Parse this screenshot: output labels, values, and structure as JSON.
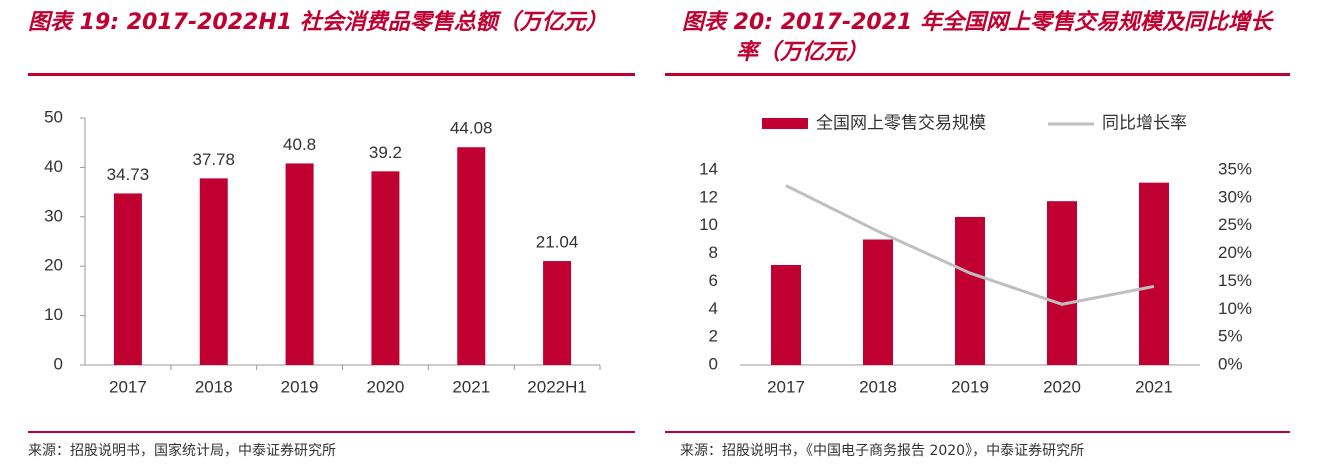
{
  "chart_data": [
    {
      "type": "bar",
      "title": "图表 19: 2017-2022H1 社会消费品零售总额（万亿元）",
      "categories": [
        "2017",
        "2018",
        "2019",
        "2020",
        "2021",
        "2022H1"
      ],
      "values": [
        34.73,
        37.78,
        40.8,
        39.2,
        44.08,
        21.04
      ],
      "color": "#c00030",
      "data_labels": true,
      "ylim": [
        0,
        50
      ],
      "yticks": [
        0,
        10,
        20,
        30,
        40,
        50
      ],
      "source": "来源：招股说明书，国家统计局，中泰证券研究所"
    },
    {
      "type": "combo",
      "title": "图表 20: 2017-2021 年全国网上零售交易规模及同比增长率（万亿元）",
      "categories": [
        "2017",
        "2018",
        "2019",
        "2020",
        "2021"
      ],
      "series": [
        {
          "name": "全国网上零售交易规模",
          "color": "#c00030",
          "kind": "bar",
          "values": [
            7.18,
            9.01,
            10.63,
            11.76,
            13.09
          ]
        },
        {
          "name": "同比增长率",
          "color": "#bfbfbf",
          "kind": "line",
          "axis": "y2",
          "values": [
            32.2,
            24.0,
            16.5,
            10.9,
            14.1
          ]
        }
      ],
      "legend": "top",
      "ylim": [
        0,
        14
      ],
      "yticks": [
        0,
        2,
        4,
        6,
        8,
        10,
        12,
        14
      ],
      "y2lim": [
        0,
        35
      ],
      "y2ticks": [
        {
          "value": 0,
          "label": "0%"
        },
        {
          "value": 5,
          "label": "5%"
        },
        {
          "value": 10,
          "label": "10%"
        },
        {
          "value": 15,
          "label": "15%"
        },
        {
          "value": 20,
          "label": "20%"
        },
        {
          "value": 25,
          "label": "25%"
        },
        {
          "value": 30,
          "label": "30%"
        },
        {
          "value": 35,
          "label": "35%"
        }
      ],
      "source": "来源：招股说明书，《中国电子商务报告 2020》，中泰证券研究所"
    }
  ]
}
